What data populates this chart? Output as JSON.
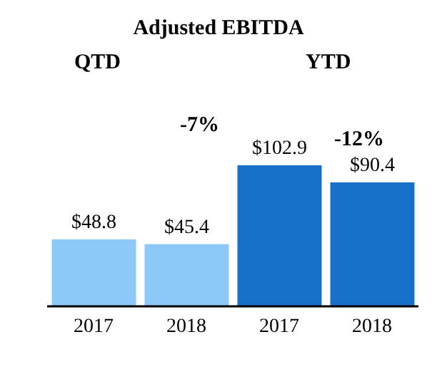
{
  "chart_data": {
    "type": "bar",
    "title": "Adjusted EBITDA",
    "categories": [
      "2017",
      "2018",
      "2017",
      "2018"
    ],
    "values": [
      48.8,
      45.4,
      102.9,
      90.4
    ],
    "colors": [
      "#8cc8fa",
      "#8cc8fa",
      "#1670c8",
      "#1670c8"
    ],
    "value_labels": [
      "$48.8",
      "$45.4",
      "$102.9",
      "$90.4"
    ],
    "annotations": [
      "QTD",
      "-7%",
      "YTD",
      "-12%"
    ]
  }
}
